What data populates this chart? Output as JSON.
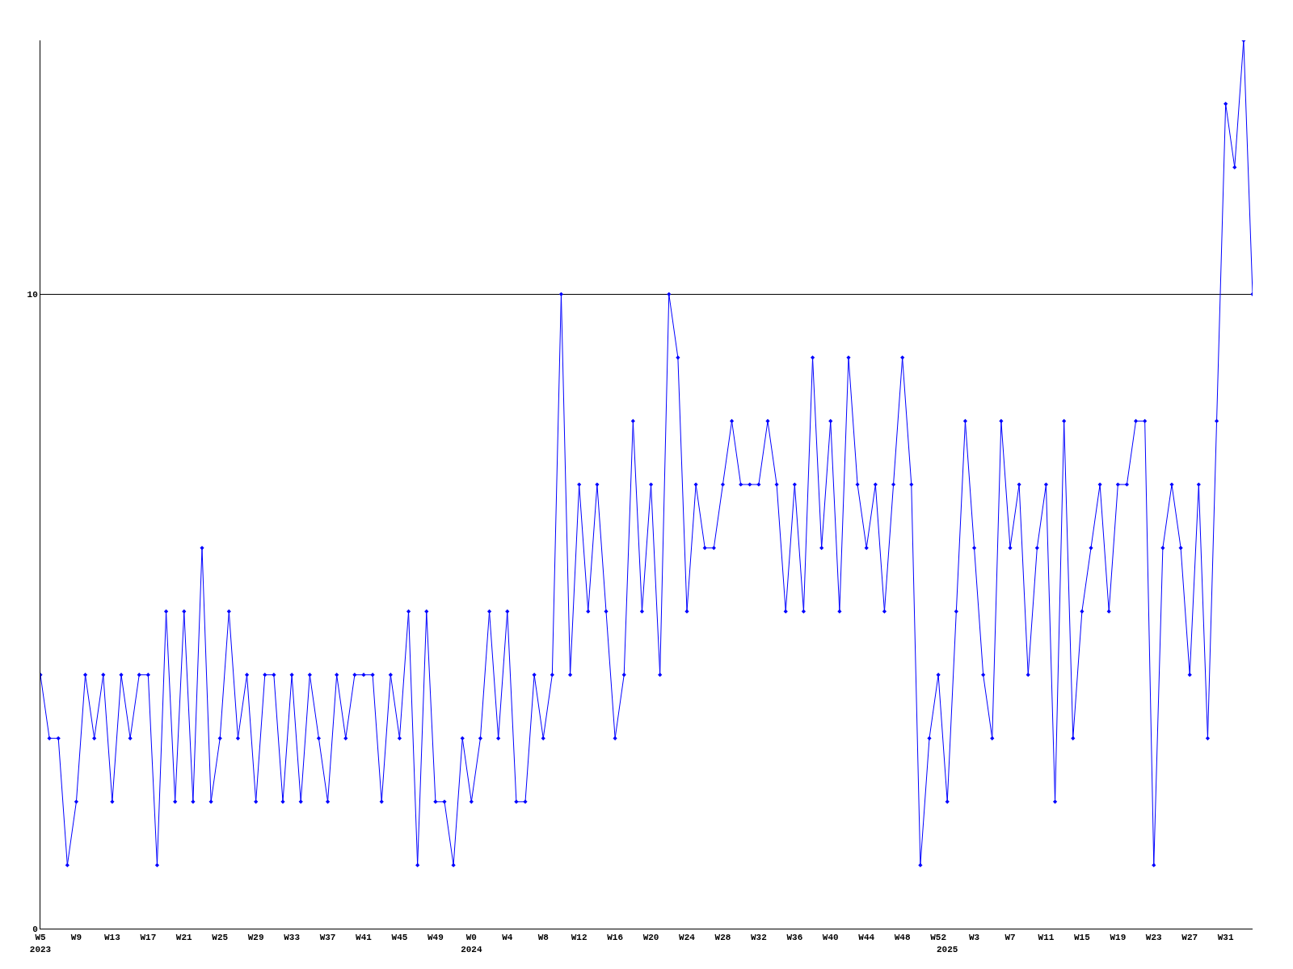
{
  "chart_data": {
    "type": "line",
    "categories": [
      "W5\n2023",
      null,
      null,
      null,
      "W9",
      null,
      null,
      null,
      "W13",
      null,
      null,
      null,
      "W17",
      null,
      null,
      null,
      "W21",
      null,
      null,
      null,
      "W25",
      null,
      null,
      null,
      "W29",
      null,
      null,
      null,
      "W33",
      null,
      null,
      null,
      "W37",
      null,
      null,
      null,
      "W41",
      null,
      null,
      null,
      "W45",
      null,
      null,
      null,
      "W49",
      null,
      null,
      null,
      "W0\n2024",
      null,
      null,
      null,
      "W4",
      null,
      null,
      null,
      "W8",
      null,
      null,
      null,
      "W12",
      null,
      null,
      null,
      "W16",
      null,
      null,
      null,
      "W20",
      null,
      null,
      null,
      "W24",
      null,
      null,
      null,
      "W28",
      null,
      null,
      null,
      "W32",
      null,
      null,
      null,
      "W36",
      null,
      null,
      null,
      "W40",
      null,
      null,
      null,
      "W44",
      null,
      null,
      null,
      "W48",
      null,
      null,
      null,
      "W52",
      "\n2025",
      null,
      null,
      "W3",
      null,
      null,
      null,
      "W7",
      null,
      null,
      null,
      "W11",
      null,
      null,
      null,
      "W15",
      null,
      null,
      null,
      "W19",
      null,
      null,
      null,
      "W23",
      null,
      null,
      null,
      "W27",
      null,
      null,
      null,
      "W31",
      null,
      null,
      null
    ],
    "series": [
      {
        "color": "#0000ff",
        "values": [
          4,
          3,
          3,
          1,
          2,
          4,
          3,
          4,
          2,
          4,
          3,
          4,
          4,
          1,
          5,
          2,
          5,
          2,
          6,
          2,
          3,
          5,
          3,
          4,
          2,
          4,
          4,
          2,
          4,
          2,
          4,
          3,
          2,
          4,
          3,
          4,
          4,
          4,
          2,
          4,
          3,
          5,
          1,
          5,
          2,
          2,
          1,
          3,
          2,
          3,
          5,
          3,
          5,
          2,
          2,
          4,
          3,
          4,
          10,
          4,
          7,
          5,
          7,
          5,
          3,
          4,
          8,
          5,
          7,
          4,
          10,
          9,
          5,
          7,
          6,
          6,
          7,
          8,
          7,
          7,
          7,
          8,
          7,
          5,
          7,
          5,
          9,
          6,
          8,
          5,
          9,
          7,
          6,
          7,
          5,
          7,
          9,
          7,
          1,
          3,
          4,
          2,
          5,
          8,
          6,
          4,
          3,
          8,
          6,
          7,
          4,
          6,
          7,
          2,
          8,
          3,
          5,
          6,
          7,
          5,
          7,
          7,
          8,
          8,
          1,
          6,
          7,
          6,
          4,
          7,
          3,
          8,
          13,
          12,
          14,
          10
        ]
      }
    ],
    "ylim": [
      0,
      14
    ],
    "yticks": [
      0,
      10
    ],
    "grid": "y",
    "marker": "diamond",
    "line_style": "solid"
  }
}
